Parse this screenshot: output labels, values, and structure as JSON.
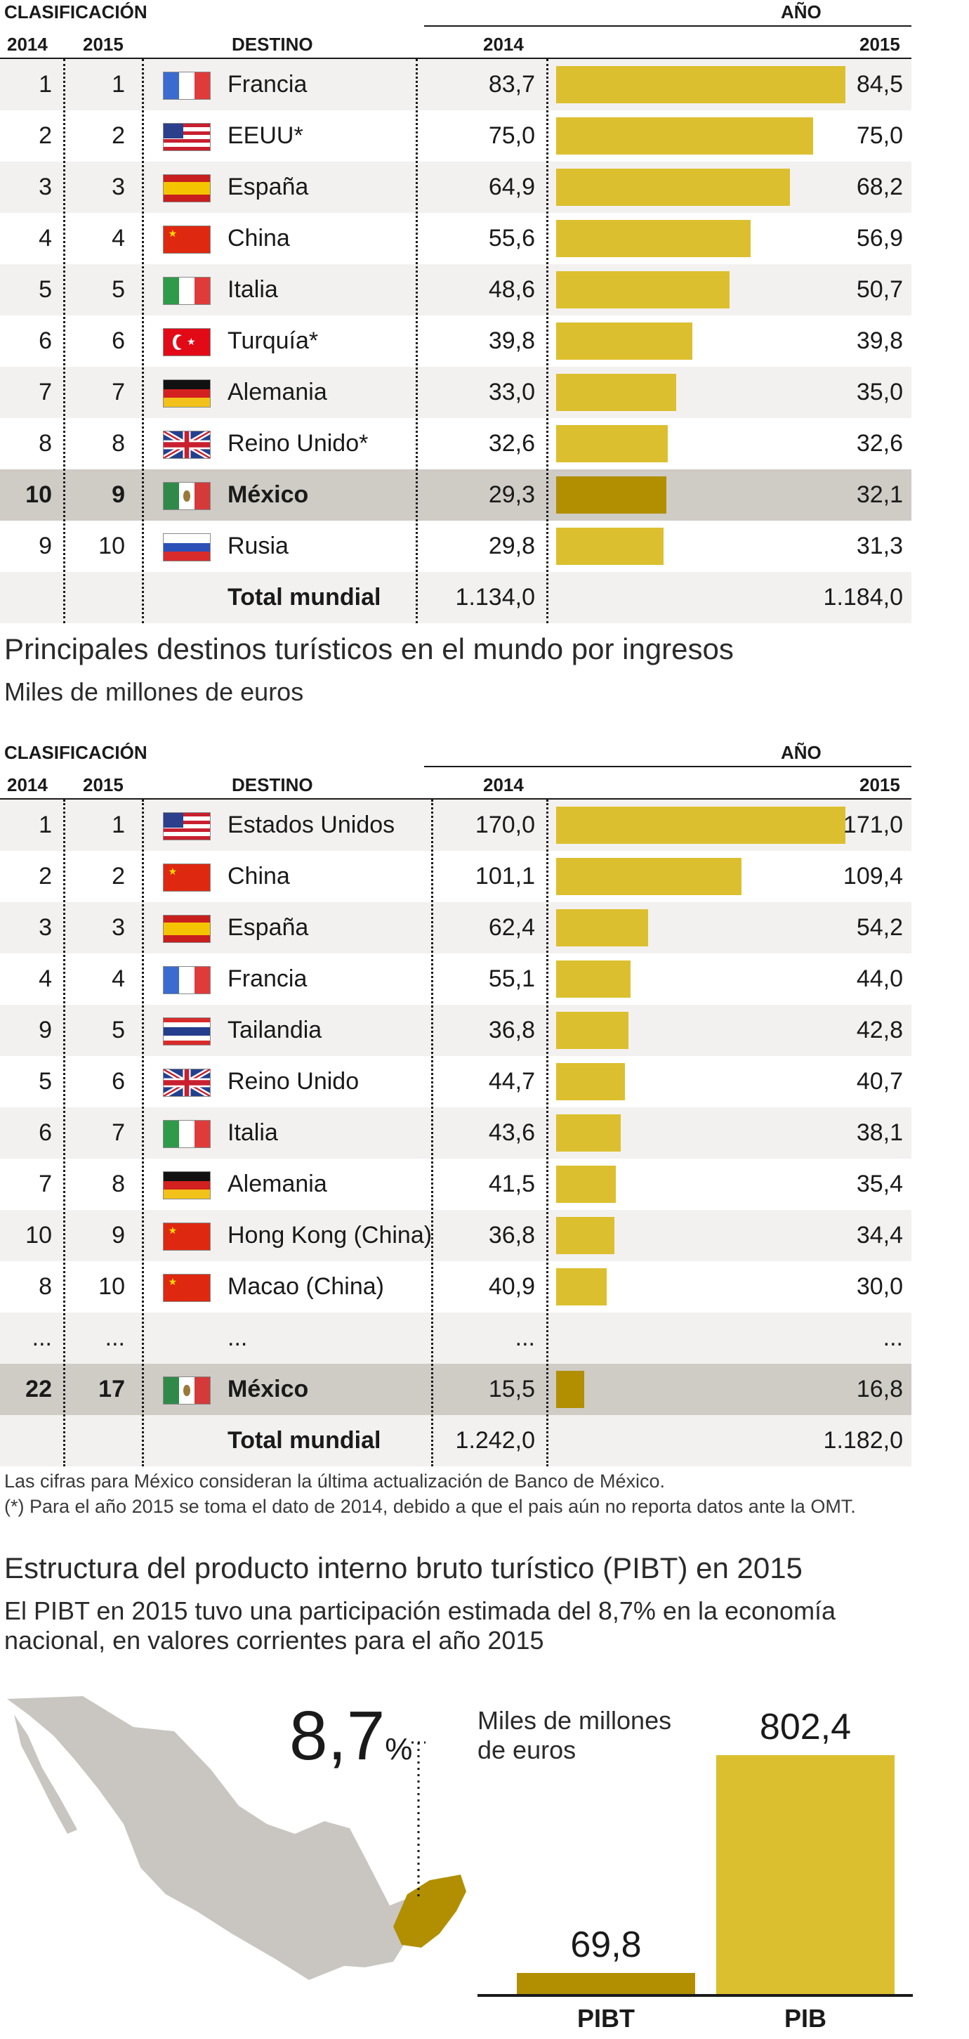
{
  "colors": {
    "bar": "#dcbf2e",
    "bar_mexico": "#b18f00",
    "highlight_row": "#cfcbc5",
    "alt_row": "#f3f1ef"
  },
  "table1": {
    "header_clasificacion": "CLASIFICACIÓN",
    "header_ano": "AÑO",
    "header_2014": "2014",
    "header_2015": "2015",
    "header_destino": "DESTINO",
    "header_v2014": "2014",
    "header_v2015": "2015",
    "rows": [
      {
        "r14": "1",
        "r15": "1",
        "flag": "france",
        "name": "Francia",
        "v14": "83,7",
        "v15": "84,5",
        "value15": 84.5
      },
      {
        "r14": "2",
        "r15": "2",
        "flag": "usa",
        "name": "EEUU*",
        "v14": "75,0",
        "v15": "75,0",
        "value15": 75.0
      },
      {
        "r14": "3",
        "r15": "3",
        "flag": "spain",
        "name": "España",
        "v14": "64,9",
        "v15": "68,2",
        "value15": 68.2
      },
      {
        "r14": "4",
        "r15": "4",
        "flag": "china",
        "name": "China",
        "v14": "55,6",
        "v15": "56,9",
        "value15": 56.9
      },
      {
        "r14": "5",
        "r15": "5",
        "flag": "italy",
        "name": "Italia",
        "v14": "48,6",
        "v15": "50,7",
        "value15": 50.7
      },
      {
        "r14": "6",
        "r15": "6",
        "flag": "turkey",
        "name": "Turquía*",
        "v14": "39,8",
        "v15": "39,8",
        "value15": 39.8
      },
      {
        "r14": "7",
        "r15": "7",
        "flag": "germany",
        "name": "Alemania",
        "v14": "33,0",
        "v15": "35,0",
        "value15": 35.0
      },
      {
        "r14": "8",
        "r15": "8",
        "flag": "uk",
        "name": "Reino Unido*",
        "v14": "32,6",
        "v15": "32,6",
        "value15": 32.6
      },
      {
        "r14": "10",
        "r15": "9",
        "flag": "mexico",
        "name": "México",
        "v14": "29,3",
        "v15": "32,1",
        "value15": 32.1,
        "highlight": true
      },
      {
        "r14": "9",
        "r15": "10",
        "flag": "russia",
        "name": "Rusia",
        "v14": "29,8",
        "v15": "31,3",
        "value15": 31.3
      }
    ],
    "total": {
      "name": "Total mundial",
      "v14": "1.134,0",
      "v15": "1.184,0"
    }
  },
  "section2": {
    "title": "Principales destinos turísticos en el mundo por ingresos",
    "subtitle": "Miles de millones de euros"
  },
  "table2": {
    "header_clasificacion": "CLASIFICACIÓN",
    "header_ano": "AÑO",
    "header_2014": "2014",
    "header_2015": "2015",
    "header_destino": "DESTINO",
    "header_v2014": "2014",
    "header_v2015": "2015",
    "rows": [
      {
        "r14": "1",
        "r15": "1",
        "flag": "usa",
        "name": "Estados Unidos",
        "v14": "170,0",
        "v15": "171,0",
        "value15": 171.0
      },
      {
        "r14": "2",
        "r15": "2",
        "flag": "china",
        "name": "China",
        "v14": "101,1",
        "v15": "109,4",
        "value15": 109.4
      },
      {
        "r14": "3",
        "r15": "3",
        "flag": "spain",
        "name": "España",
        "v14": "62,4",
        "v15": "54,2",
        "value15": 54.2
      },
      {
        "r14": "4",
        "r15": "4",
        "flag": "france",
        "name": "Francia",
        "v14": "55,1",
        "v15": "44,0",
        "value15": 44.0
      },
      {
        "r14": "9",
        "r15": "5",
        "flag": "thailand",
        "name": "Tailandia",
        "v14": "36,8",
        "v15": "42,8",
        "value15": 42.8
      },
      {
        "r14": "5",
        "r15": "6",
        "flag": "uk",
        "name": "Reino Unido",
        "v14": "44,7",
        "v15": "40,7",
        "value15": 40.7
      },
      {
        "r14": "6",
        "r15": "7",
        "flag": "italy",
        "name": "Italia",
        "v14": "43,6",
        "v15": "38,1",
        "value15": 38.1
      },
      {
        "r14": "7",
        "r15": "8",
        "flag": "germany",
        "name": "Alemania",
        "v14": "41,5",
        "v15": "35,4",
        "value15": 35.4
      },
      {
        "r14": "10",
        "r15": "9",
        "flag": "china",
        "name": "Hong Kong (China)",
        "v14": "36,8",
        "v15": "34,4",
        "value15": 34.4
      },
      {
        "r14": "8",
        "r15": "10",
        "flag": "china",
        "name": "Macao (China)",
        "v14": "40,9",
        "v15": "30,0",
        "value15": 30.0
      },
      {
        "r14": "...",
        "r15": "...",
        "flag": "",
        "name": "...",
        "v14": "...",
        "v15": "...",
        "ellipsis": true
      },
      {
        "r14": "22",
        "r15": "17",
        "flag": "mexico",
        "name": "México",
        "v14": "15,5",
        "v15": "16,8",
        "value15": 16.8,
        "highlight": true
      }
    ],
    "total": {
      "name": "Total mundial",
      "v14": "1.242,0",
      "v15": "1.182,0"
    }
  },
  "notes": {
    "line1": "Las cifras para México consideran la última actualización de Banco de México.",
    "line2": "(*) Para el año 2015 se toma el dato de 2014, debido a que el pais aún no reporta datos ante la OMT."
  },
  "section3": {
    "title": "Estructura del producto interno bruto turístico (PIBT) en 2015",
    "subtitle1": "El PIBT en 2015 tuvo una participación estimada del 8,7% en la economía",
    "subtitle2": "nacional, en valores corrientes para el año 2015",
    "share_value": "8,7",
    "share_unit": "%",
    "unit_line1": "Miles de millones",
    "unit_line2": "de euros"
  },
  "chart_data": {
    "type": "bar",
    "categories": [
      "PIBT",
      "PIB"
    ],
    "values": [
      69.8,
      802.4
    ],
    "value_labels": [
      "69,8",
      "802,4"
    ]
  }
}
